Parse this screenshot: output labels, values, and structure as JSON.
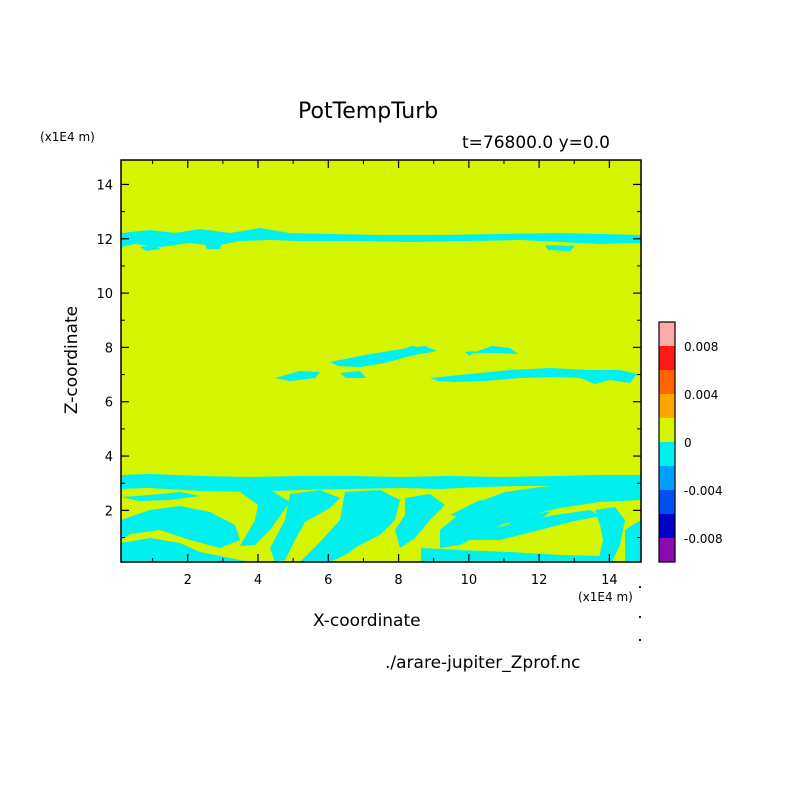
{
  "title": "PotTempTurb",
  "subtitle": "t=76800.0 y=0.0",
  "footer": "./arare-jupiter_Zprof.nc",
  "colors": {
    "positive_small": "#d4f400",
    "negative_small": "#00f0f0",
    "contour_bands": [
      "#8a0bb0",
      "#0000c8",
      "#0050f0",
      "#00a0ff",
      "#00f0f0",
      "#d4f400",
      "#ffa500",
      "#ff6400",
      "#ff1a1a",
      "#ffaaaa"
    ]
  },
  "chart_data": {
    "type": "heatmap",
    "xlabel": "X-coordinate",
    "ylabel": "Z-coordinate",
    "x_unit": "(x1E4 m)",
    "y_unit": "(x1E4 m)",
    "xlim": [
      0.1,
      14.9
    ],
    "ylim": [
      0.1,
      14.9
    ],
    "xticks": [
      2,
      4,
      6,
      8,
      10,
      12,
      14
    ],
    "yticks": [
      2,
      4,
      6,
      8,
      10,
      12,
      14
    ],
    "background_value_range": [
      0,
      0.002
    ],
    "negative_regions": [
      {
        "name": "upper-band",
        "x": [
          0.1,
          14.9
        ],
        "z": [
          11.7,
          12.5
        ]
      },
      {
        "name": "middle-streak",
        "x": [
          4.5,
          14.9
        ],
        "z": [
          6.7,
          8.2
        ]
      },
      {
        "name": "lower-turbulent-layer",
        "x": [
          0.1,
          14.9
        ],
        "z": [
          0.1,
          3.4
        ]
      }
    ],
    "colorbar": {
      "levels": [
        -0.01,
        -0.008,
        -0.006,
        -0.004,
        -0.002,
        0,
        0.002,
        0.004,
        0.006,
        0.008,
        0.01
      ],
      "tick_values": [
        -0.008,
        -0.004,
        0,
        0.004,
        0.008
      ],
      "tick_labels": [
        "-0.008",
        "-0.004",
        "0",
        "0.004",
        "0.008"
      ]
    }
  }
}
